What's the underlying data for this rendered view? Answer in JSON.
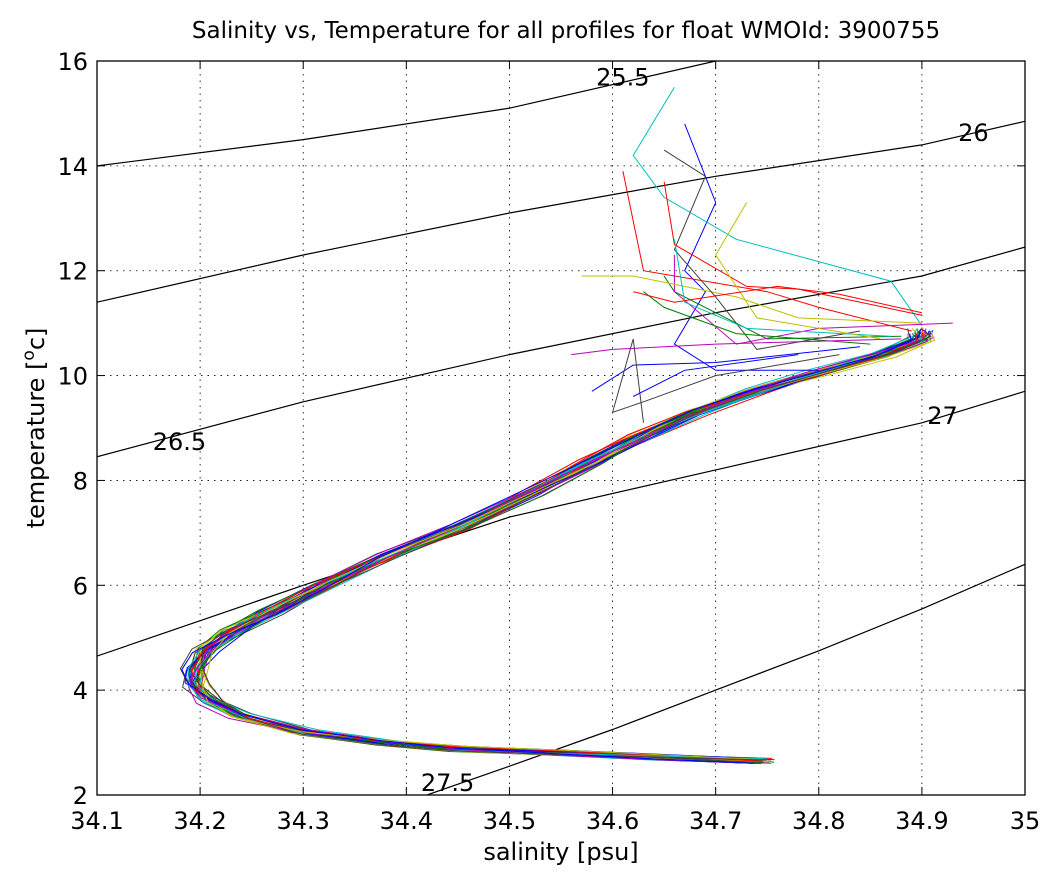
{
  "chart_data": {
    "type": "line",
    "title": "Salinity vs, Temperature for all profiles for float WMOId: 3900755",
    "xlabel": "salinity [psu]",
    "ylabel_main": "temperature [",
    "ylabel_sup": "o",
    "ylabel_tail": "c]",
    "xlim": [
      34.1,
      35.0
    ],
    "ylim": [
      2,
      16
    ],
    "xticks": [
      "34.1",
      "34.2",
      "34.3",
      "34.4",
      "34.5",
      "34.6",
      "34.7",
      "34.8",
      "34.9",
      "35"
    ],
    "yticks": [
      "2",
      "4",
      "6",
      "8",
      "10",
      "12",
      "14",
      "16"
    ],
    "grid": true,
    "density_contours": [
      {
        "label": "25.5",
        "points": [
          [
            34.1,
            14.0
          ],
          [
            34.3,
            14.5
          ],
          [
            34.5,
            15.1
          ],
          [
            34.7,
            16.0
          ]
        ],
        "label_at": [
          34.61,
          15.7
        ]
      },
      {
        "label": "26",
        "points": [
          [
            34.1,
            11.4
          ],
          [
            34.3,
            12.3
          ],
          [
            34.5,
            13.1
          ],
          [
            34.7,
            13.8
          ],
          [
            34.9,
            14.4
          ],
          [
            35.0,
            14.85
          ]
        ],
        "label_at": [
          34.95,
          14.65
        ]
      },
      {
        "label": "26.5",
        "points": [
          [
            34.1,
            8.45
          ],
          [
            34.3,
            9.5
          ],
          [
            34.5,
            10.4
          ],
          [
            34.7,
            11.2
          ],
          [
            34.9,
            11.9
          ],
          [
            35.0,
            12.45
          ]
        ],
        "label_at": [
          34.18,
          8.75
        ]
      },
      {
        "label": "27",
        "points": [
          [
            34.1,
            4.65
          ],
          [
            34.3,
            6.0
          ],
          [
            34.5,
            7.3
          ],
          [
            34.7,
            8.2
          ],
          [
            34.9,
            9.1
          ],
          [
            35.0,
            9.7
          ]
        ],
        "label_at": [
          34.92,
          9.25
        ]
      },
      {
        "label": "27.5",
        "points": [
          [
            34.42,
            2.0
          ],
          [
            34.5,
            2.55
          ],
          [
            34.6,
            3.25
          ],
          [
            34.7,
            4.0
          ],
          [
            34.8,
            4.75
          ],
          [
            34.9,
            5.55
          ],
          [
            35.0,
            6.4
          ]
        ],
        "label_at": [
          34.44,
          2.25
        ]
      }
    ],
    "profile_core": [
      [
        34.745,
        2.65
      ],
      [
        34.65,
        2.72
      ],
      [
        34.55,
        2.8
      ],
      [
        34.45,
        2.88
      ],
      [
        34.38,
        3.0
      ],
      [
        34.3,
        3.2
      ],
      [
        34.24,
        3.5
      ],
      [
        34.21,
        3.8
      ],
      [
        34.195,
        4.1
      ],
      [
        34.195,
        4.4
      ],
      [
        34.205,
        4.75
      ],
      [
        34.23,
        5.1
      ],
      [
        34.27,
        5.5
      ],
      [
        34.32,
        6.0
      ],
      [
        34.38,
        6.55
      ],
      [
        34.45,
        7.1
      ],
      [
        34.52,
        7.75
      ],
      [
        34.58,
        8.35
      ],
      [
        34.63,
        8.85
      ],
      [
        34.68,
        9.3
      ],
      [
        34.74,
        9.7
      ],
      [
        34.8,
        10.05
      ],
      [
        34.86,
        10.4
      ],
      [
        34.9,
        10.7
      ],
      [
        34.9,
        10.85
      ]
    ],
    "profile_tops": [
      {
        "color": "#0000ff",
        "points": [
          [
            34.8,
            10.1
          ],
          [
            34.7,
            10.1
          ],
          [
            34.66,
            10.6
          ],
          [
            34.69,
            11.6
          ],
          [
            34.67,
            12.0
          ],
          [
            34.7,
            13.3
          ],
          [
            34.67,
            14.8
          ]
        ]
      },
      {
        "color": "#008000",
        "points": [
          [
            34.88,
            10.75
          ],
          [
            34.75,
            10.7
          ],
          [
            34.66,
            11.6
          ],
          [
            34.65,
            11.9
          ]
        ]
      },
      {
        "color": "#ff0000",
        "points": [
          [
            34.89,
            10.85
          ],
          [
            34.8,
            11.3
          ],
          [
            34.75,
            11.6
          ],
          [
            34.63,
            12.0
          ],
          [
            34.61,
            13.9
          ]
        ]
      },
      {
        "color": "#00bfbf",
        "points": [
          [
            34.9,
            10.95
          ],
          [
            34.87,
            11.8
          ],
          [
            34.72,
            12.6
          ],
          [
            34.65,
            13.4
          ],
          [
            34.62,
            14.2
          ],
          [
            34.66,
            15.5
          ]
        ]
      },
      {
        "color": "#bf00bf",
        "points": [
          [
            34.93,
            11.0
          ],
          [
            34.8,
            10.9
          ],
          [
            34.72,
            10.6
          ],
          [
            34.66,
            11.6
          ],
          [
            34.66,
            12.3
          ]
        ]
      },
      {
        "color": "#bfbf00",
        "points": [
          [
            34.9,
            11.0
          ],
          [
            34.78,
            11.1
          ],
          [
            34.72,
            11.5
          ],
          [
            34.62,
            11.9
          ],
          [
            34.57,
            11.9
          ]
        ]
      },
      {
        "color": "#404040",
        "points": [
          [
            34.84,
            10.85
          ],
          [
            34.74,
            10.5
          ],
          [
            34.7,
            11.5
          ],
          [
            34.66,
            12.4
          ],
          [
            34.69,
            13.8
          ],
          [
            34.65,
            14.3
          ]
        ]
      },
      {
        "color": "#ff0000",
        "points": [
          [
            34.9,
            11.15
          ],
          [
            34.78,
            11.65
          ],
          [
            34.73,
            11.7
          ],
          [
            34.66,
            12.5
          ],
          [
            34.65,
            13.7
          ]
        ]
      },
      {
        "color": "#0000ff",
        "points": [
          [
            34.84,
            10.55
          ],
          [
            34.7,
            10.25
          ],
          [
            34.62,
            10.2
          ],
          [
            34.58,
            9.7
          ]
        ]
      },
      {
        "color": "#008000",
        "points": [
          [
            34.85,
            10.6
          ],
          [
            34.72,
            10.8
          ],
          [
            34.65,
            11.3
          ],
          [
            34.63,
            11.6
          ]
        ]
      },
      {
        "color": "#bf00bf",
        "points": [
          [
            34.88,
            10.7
          ],
          [
            34.7,
            10.6
          ],
          [
            34.6,
            10.5
          ],
          [
            34.56,
            10.4
          ]
        ]
      },
      {
        "color": "#404040",
        "points": [
          [
            34.82,
            10.4
          ],
          [
            34.7,
            10.0
          ],
          [
            34.63,
            9.5
          ],
          [
            34.6,
            9.3
          ],
          [
            34.62,
            10.7
          ],
          [
            34.63,
            9.1
          ]
        ]
      },
      {
        "color": "#00bfbf",
        "points": [
          [
            34.87,
            10.75
          ],
          [
            34.73,
            10.9
          ],
          [
            34.67,
            11.4
          ],
          [
            34.66,
            12.6
          ]
        ]
      },
      {
        "color": "#bfbf00",
        "points": [
          [
            34.86,
            10.7
          ],
          [
            34.74,
            11.1
          ],
          [
            34.7,
            12.3
          ],
          [
            34.73,
            13.3
          ]
        ]
      },
      {
        "color": "#ff0000",
        "points": [
          [
            34.9,
            11.2
          ],
          [
            34.82,
            11.55
          ],
          [
            34.76,
            11.7
          ],
          [
            34.66,
            11.4
          ],
          [
            34.62,
            11.6
          ]
        ]
      },
      {
        "color": "#0000ff",
        "points": [
          [
            34.78,
            10.4
          ],
          [
            34.67,
            10.1
          ],
          [
            34.64,
            9.8
          ],
          [
            34.62,
            9.6
          ]
        ]
      }
    ],
    "profile_colors": [
      "#0000ff",
      "#008000",
      "#ff0000",
      "#00bfbf",
      "#bf00bf",
      "#bfbf00",
      "#404040"
    ]
  }
}
